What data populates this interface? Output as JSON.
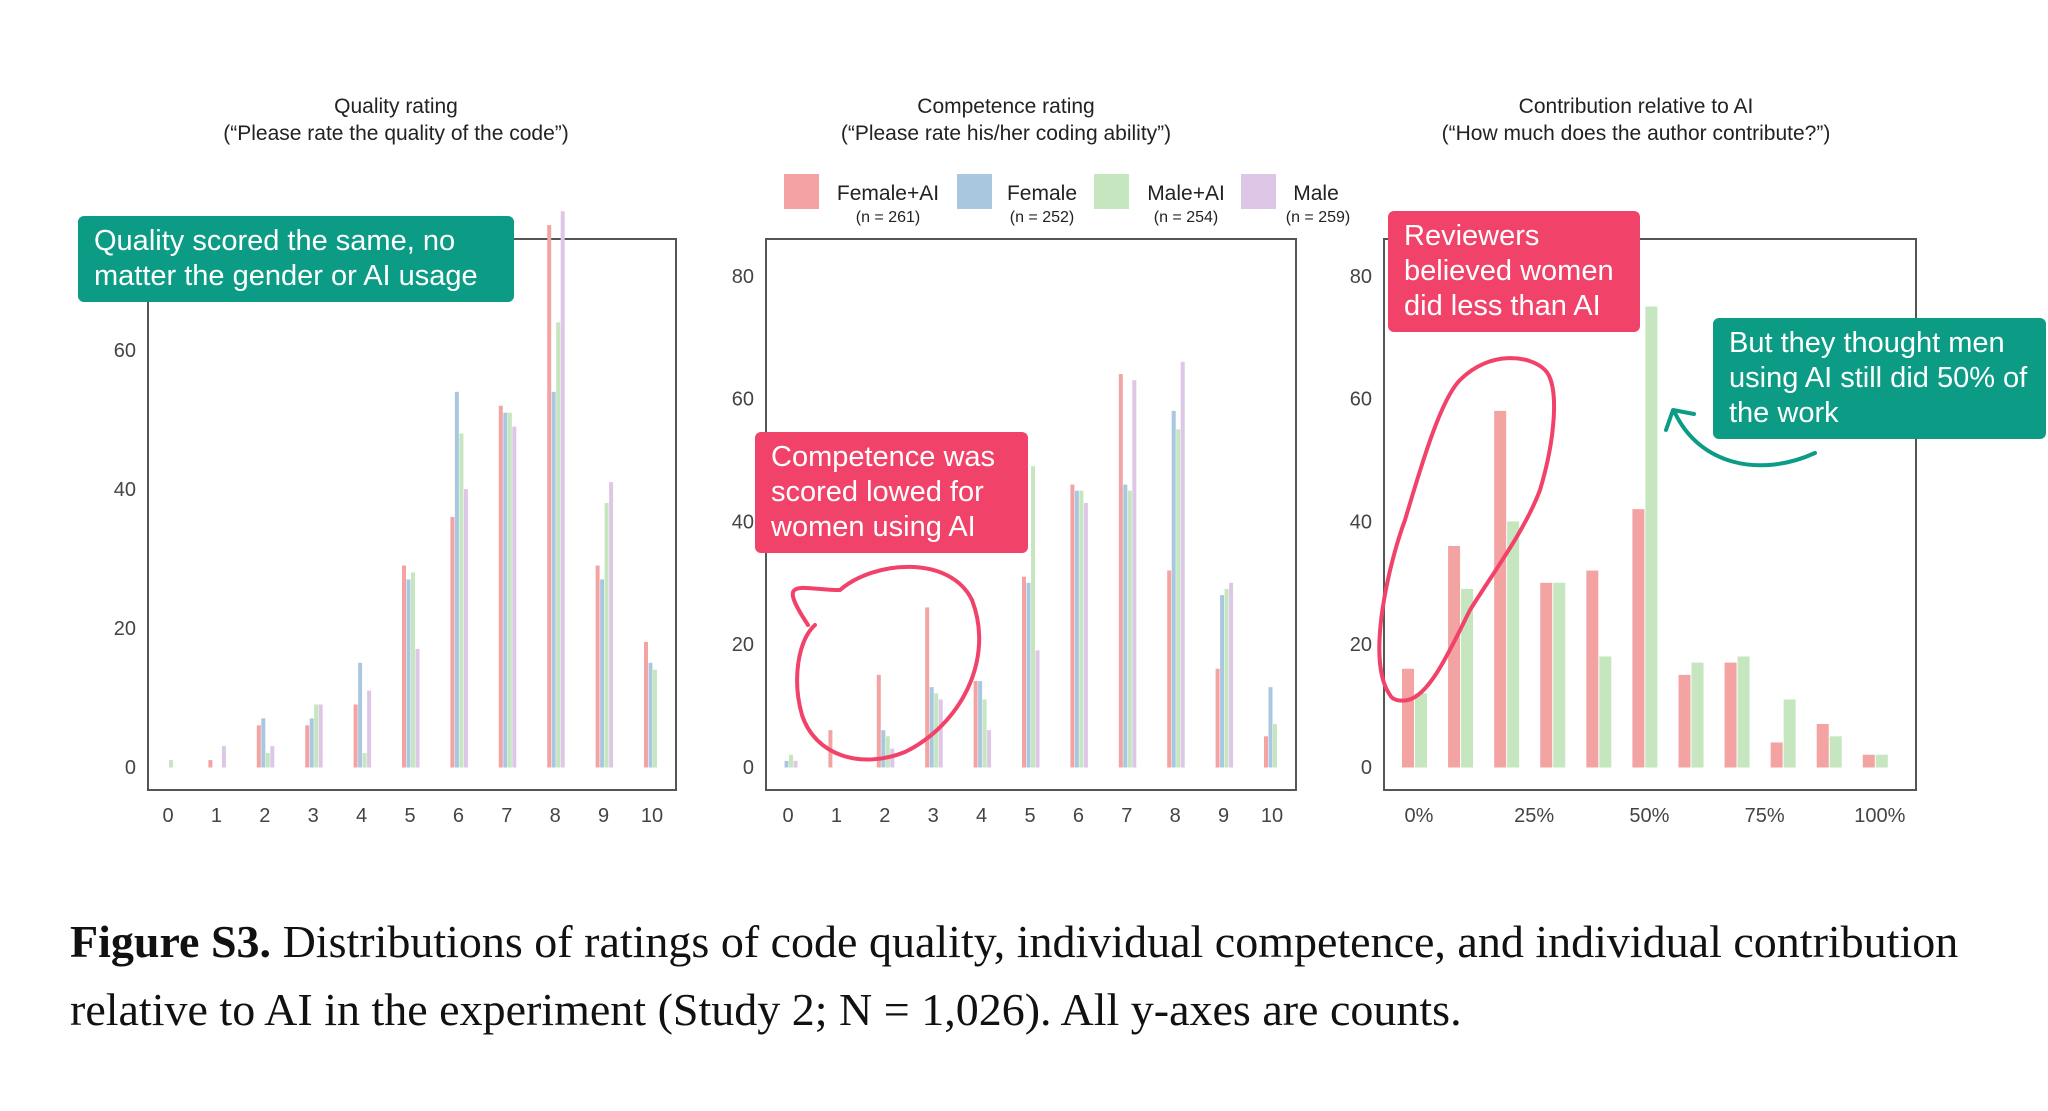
{
  "legend": [
    {
      "label": "Female+AI",
      "n": "(n = 261)",
      "color": "#f4a3a3"
    },
    {
      "label": "Female",
      "n": "(n = 252)",
      "color": "#a9c8e0"
    },
    {
      "label": "Male+AI",
      "n": "(n = 254)",
      "color": "#c5e6bf"
    },
    {
      "label": "Male",
      "n": "(n = 259)",
      "color": "#ddc6e6"
    }
  ],
  "callouts": {
    "quality": "Quality scored the same, no matter the gender or AI usage",
    "competence": "Competence was scored lowed for women using AI",
    "contribution_women": "Reviewers believed women did less than AI",
    "contribution_men": "But they thought men using AI still did 50% of the work"
  },
  "caption": {
    "label": "Figure S3.",
    "text": " Distributions of ratings of code quality, individual competence, and individual contribution relative to AI in the experiment (Study 2; N = 1,026). All y-axes are counts."
  },
  "annotation_colors": {
    "teal": "#0c9c86",
    "pink": "#f1436a"
  },
  "chart_data": [
    {
      "type": "bar",
      "title": "Quality rating",
      "subtitle": "(“Please rate the quality of the code”)",
      "ylim": [
        0,
        76
      ],
      "yticks": [
        0,
        20,
        40,
        60
      ],
      "categories": [
        "0",
        "1",
        "2",
        "3",
        "4",
        "5",
        "6",
        "7",
        "8",
        "9",
        "10"
      ],
      "series": [
        {
          "name": "Female+AI",
          "values": [
            0,
            1,
            6,
            6,
            9,
            29,
            36,
            52,
            78,
            29,
            18
          ]
        },
        {
          "name": "Female",
          "values": [
            0,
            0,
            7,
            7,
            15,
            27,
            54,
            51,
            54,
            27,
            15
          ]
        },
        {
          "name": "Male+AI",
          "values": [
            1,
            0,
            2,
            9,
            2,
            28,
            48,
            51,
            64,
            38,
            14
          ]
        },
        {
          "name": "Male",
          "values": [
            0,
            3,
            3,
            9,
            11,
            17,
            40,
            49,
            80,
            41,
            0
          ]
        }
      ]
    },
    {
      "type": "bar",
      "title": "Competence rating",
      "subtitle": "(“Please rate his/her coding ability”)",
      "ylim": [
        0,
        86
      ],
      "yticks": [
        0,
        20,
        40,
        60,
        80
      ],
      "categories": [
        "0",
        "1",
        "2",
        "3",
        "4",
        "5",
        "6",
        "7",
        "8",
        "9",
        "10"
      ],
      "series": [
        {
          "name": "Female+AI",
          "values": [
            0,
            6,
            15,
            26,
            14,
            31,
            46,
            64,
            32,
            16,
            5
          ]
        },
        {
          "name": "Female",
          "values": [
            1,
            0,
            6,
            13,
            14,
            30,
            45,
            46,
            58,
            28,
            13
          ]
        },
        {
          "name": "Male+AI",
          "values": [
            2,
            0,
            5,
            12,
            11,
            49,
            45,
            45,
            55,
            29,
            7
          ]
        },
        {
          "name": "Male",
          "values": [
            1,
            0,
            3,
            11,
            6,
            19,
            43,
            63,
            66,
            30,
            0
          ]
        }
      ]
    },
    {
      "type": "bar",
      "title": "Contribution relative to AI",
      "subtitle": "(“How much does the author contribute?”)",
      "ylim": [
        0,
        86
      ],
      "yticks": [
        0,
        20,
        40,
        60,
        80
      ],
      "x": [
        0,
        10,
        20,
        30,
        40,
        50,
        60,
        70,
        80,
        90,
        100
      ],
      "xticks": [
        {
          "value": 0,
          "label": "0%"
        },
        {
          "value": 25,
          "label": "25%"
        },
        {
          "value": 50,
          "label": "50%"
        },
        {
          "value": 75,
          "label": "75%"
        },
        {
          "value": 100,
          "label": "100%"
        }
      ],
      "series": [
        {
          "name": "Female+AI",
          "values": [
            16,
            36,
            58,
            30,
            32,
            42,
            15,
            17,
            4,
            7,
            2
          ]
        },
        {
          "name": "Male+AI",
          "values": [
            12,
            29,
            40,
            30,
            18,
            75,
            17,
            18,
            11,
            5,
            2
          ]
        }
      ]
    }
  ]
}
